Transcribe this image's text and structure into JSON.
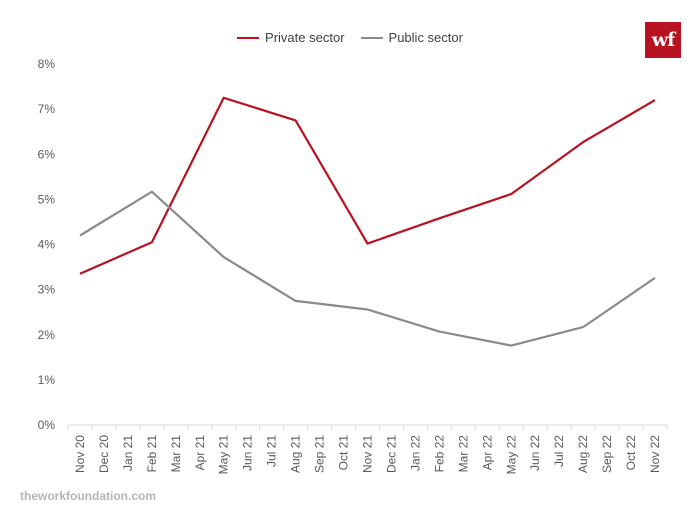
{
  "logo_text": "wf",
  "source_text": "theworkfoundation.com",
  "colors": {
    "private": "#b7121f",
    "public": "#8a8a8a",
    "grid": "#d9d9d9",
    "axis_text": "#595959"
  },
  "chart_data": {
    "type": "line",
    "categories": [
      "Nov 20",
      "Dec 20",
      "Jan 21",
      "Feb 21",
      "Mar 21",
      "Apr 21",
      "May 21",
      "Jun 21",
      "Jul 21",
      "Aug 21",
      "Sep 21",
      "Oct 21",
      "Nov 21",
      "Dec 21",
      "Jan 22",
      "Feb 22",
      "Mar 22",
      "Apr 22",
      "May 22",
      "Jun 22",
      "Jul 22",
      "Aug 22",
      "Sep 22",
      "Oct 22",
      "Nov 22"
    ],
    "series": [
      {
        "name": "Private sector",
        "values": [
          3.35,
          null,
          null,
          4.05,
          null,
          null,
          7.25,
          null,
          null,
          6.75,
          null,
          null,
          4.02,
          null,
          null,
          4.58,
          null,
          null,
          5.12,
          null,
          null,
          6.27,
          null,
          null,
          7.2
        ]
      },
      {
        "name": "Public sector",
        "values": [
          4.2,
          null,
          null,
          5.17,
          null,
          null,
          3.72,
          null,
          null,
          2.75,
          null,
          null,
          2.56,
          null,
          null,
          2.07,
          null,
          null,
          1.76,
          null,
          null,
          2.17,
          null,
          null,
          3.26
        ]
      }
    ],
    "ylim": [
      0,
      8
    ],
    "yticks": [
      "0%",
      "1%",
      "2%",
      "3%",
      "4%",
      "5%",
      "6%",
      "7%",
      "8%"
    ],
    "grid": false,
    "legend": "top"
  }
}
